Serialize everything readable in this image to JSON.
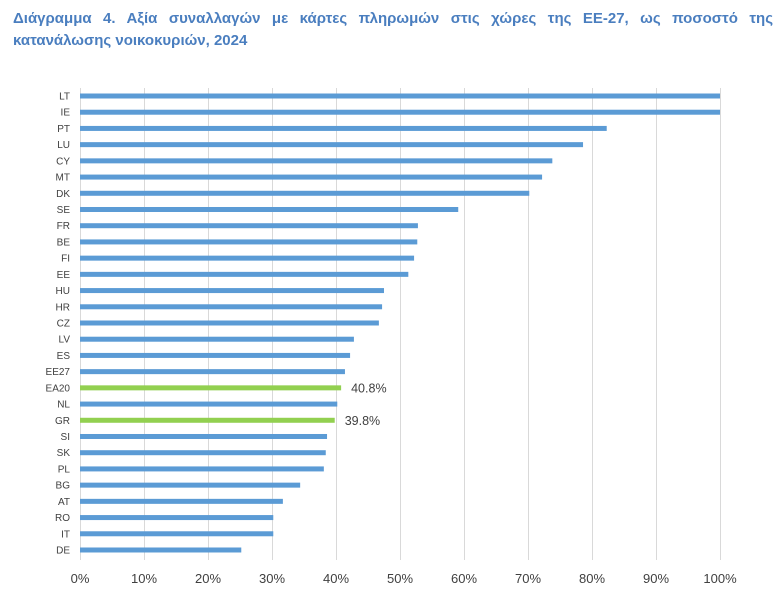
{
  "chart_data": {
    "type": "bar",
    "orientation": "horizontal",
    "title_lines": [
      "Διάγραμμα 4. Αξία συναλλαγών με κάρτες πληρωμών στις χώρες της ΕΕ-27, ως ποσοστό της",
      "κατανάλωσης νοικοκυριών, 2024"
    ],
    "categories": [
      "LT",
      "IE",
      "PT",
      "LU",
      "CY",
      "MT",
      "DK",
      "SE",
      "FR",
      "BE",
      "FI",
      "EE",
      "HU",
      "HR",
      "CZ",
      "LV",
      "ES",
      "EE27",
      "EA20",
      "NL",
      "GR",
      "SI",
      "SK",
      "PL",
      "BG",
      "AT",
      "RO",
      "IT",
      "DE"
    ],
    "values": [
      100.0,
      100.0,
      82.3,
      78.6,
      73.8,
      72.2,
      70.2,
      59.1,
      52.8,
      52.7,
      52.2,
      51.3,
      47.5,
      47.2,
      46.7,
      42.8,
      42.2,
      41.4,
      40.8,
      40.2,
      39.8,
      38.6,
      38.4,
      38.1,
      34.4,
      31.7,
      30.2,
      30.2,
      25.2
    ],
    "highlight": [
      "EA20",
      "GR"
    ],
    "data_labels": [
      {
        "category": "EA20",
        "text": "40.8%"
      },
      {
        "category": "GR",
        "text": "39.8%"
      }
    ],
    "xlim": [
      0,
      100
    ],
    "xticks": [
      0,
      10,
      20,
      30,
      40,
      50,
      60,
      70,
      80,
      90,
      100
    ],
    "xtick_labels": [
      "0%",
      "10%",
      "20%",
      "30%",
      "40%",
      "50%",
      "60%",
      "70%",
      "80%",
      "90%",
      "100%"
    ],
    "xlabel": "",
    "ylabel": "",
    "grid": "vertical",
    "colors": {
      "title": "#4a7ebf",
      "bar": "#5b9bd5",
      "highlight": "#92d050",
      "grid": "#d9d9d9",
      "text": "#404040"
    }
  }
}
